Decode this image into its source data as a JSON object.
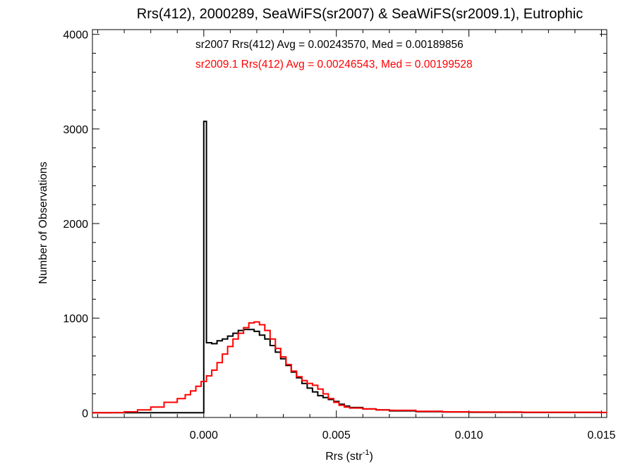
{
  "chart_data": {
    "type": "histogram",
    "title": "Rrs(412), 2000289, SeaWiFS(sr2007) & SeaWiFS(sr2009.1), Eutrophic",
    "xlabel_main": "Rrs (str",
    "xlabel_sup": "-1",
    "xlabel_close": ")",
    "ylabel": "Number of Observations",
    "xlim": [
      -0.0042,
      0.0152
    ],
    "ylim": [
      -50,
      4050
    ],
    "xticks": [
      0.0,
      0.005,
      0.01,
      0.015
    ],
    "xtick_labels": [
      "0.000",
      "0.005",
      "0.010",
      "0.015"
    ],
    "yticks": [
      0,
      1000,
      2000,
      3000,
      4000
    ],
    "ytick_labels": [
      "0",
      "1000",
      "2000",
      "3000",
      "4000"
    ],
    "grid": false,
    "annotations": [
      {
        "text": "sr2007 Rrs(412) Avg = 0.00243570, Med = 0.00189856",
        "color": "#000000"
      },
      {
        "text": "sr2009.1 Rrs(412) Avg = 0.00246543, Med = 0.00199528",
        "color": "#ff0000"
      }
    ],
    "series": [
      {
        "name": "sr2007",
        "color": "#000000",
        "points": [
          [
            -0.0042,
            0
          ],
          [
            -5e-05,
            0
          ],
          [
            0.0,
            3080
          ],
          [
            0.0001,
            740
          ],
          [
            0.0003,
            730
          ],
          [
            0.0005,
            760
          ],
          [
            0.0007,
            780
          ],
          [
            0.0009,
            810
          ],
          [
            0.0011,
            840
          ],
          [
            0.0013,
            870
          ],
          [
            0.0015,
            880
          ],
          [
            0.0017,
            880
          ],
          [
            0.0019,
            860
          ],
          [
            0.0021,
            820
          ],
          [
            0.0023,
            780
          ],
          [
            0.0025,
            710
          ],
          [
            0.0027,
            640
          ],
          [
            0.0029,
            570
          ],
          [
            0.0031,
            500
          ],
          [
            0.0033,
            430
          ],
          [
            0.0035,
            370
          ],
          [
            0.0037,
            310
          ],
          [
            0.0039,
            260
          ],
          [
            0.0041,
            220
          ],
          [
            0.0043,
            180
          ],
          [
            0.0045,
            160
          ],
          [
            0.0047,
            140
          ],
          [
            0.0049,
            120
          ],
          [
            0.0051,
            90
          ],
          [
            0.0053,
            70
          ],
          [
            0.0055,
            55
          ],
          [
            0.006,
            40
          ],
          [
            0.0065,
            30
          ],
          [
            0.007,
            20
          ],
          [
            0.008,
            12
          ],
          [
            0.009,
            8
          ],
          [
            0.01,
            5
          ],
          [
            0.012,
            3
          ],
          [
            0.015,
            2
          ]
        ]
      },
      {
        "name": "sr2009.1",
        "color": "#ff0000",
        "points": [
          [
            -0.0042,
            0
          ],
          [
            -0.0035,
            2
          ],
          [
            -0.003,
            10
          ],
          [
            -0.0025,
            30
          ],
          [
            -0.002,
            60
          ],
          [
            -0.0015,
            110
          ],
          [
            -0.001,
            150
          ],
          [
            -0.0007,
            190
          ],
          [
            -0.0005,
            230
          ],
          [
            -0.0003,
            280
          ],
          [
            -0.0001,
            330
          ],
          [
            0.0001,
            390
          ],
          [
            0.0003,
            450
          ],
          [
            0.0005,
            530
          ],
          [
            0.0007,
            620
          ],
          [
            0.0009,
            700
          ],
          [
            0.0011,
            780
          ],
          [
            0.0013,
            840
          ],
          [
            0.0015,
            900
          ],
          [
            0.0017,
            950
          ],
          [
            0.0019,
            960
          ],
          [
            0.0021,
            930
          ],
          [
            0.0023,
            870
          ],
          [
            0.0025,
            780
          ],
          [
            0.0027,
            680
          ],
          [
            0.0029,
            590
          ],
          [
            0.0031,
            510
          ],
          [
            0.0033,
            440
          ],
          [
            0.0035,
            380
          ],
          [
            0.0037,
            340
          ],
          [
            0.0039,
            310
          ],
          [
            0.0041,
            290
          ],
          [
            0.0043,
            250
          ],
          [
            0.0045,
            200
          ],
          [
            0.0047,
            150
          ],
          [
            0.0049,
            110
          ],
          [
            0.0051,
            80
          ],
          [
            0.0053,
            60
          ],
          [
            0.0055,
            50
          ],
          [
            0.006,
            40
          ],
          [
            0.0065,
            30
          ],
          [
            0.007,
            25
          ],
          [
            0.008,
            15
          ],
          [
            0.009,
            10
          ],
          [
            0.01,
            8
          ],
          [
            0.012,
            5
          ],
          [
            0.015,
            3
          ]
        ]
      }
    ]
  }
}
